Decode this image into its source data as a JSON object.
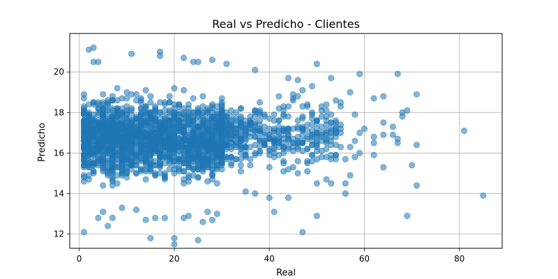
{
  "chart_data": {
    "type": "scatter",
    "title": "Real vs Predicho - Clientes",
    "xlabel": "Real",
    "ylabel": "Predicho",
    "xlim": [
      -2,
      89
    ],
    "ylim": [
      11.3,
      21.9
    ],
    "xticks": [
      0,
      20,
      40,
      60,
      80
    ],
    "yticks": [
      12,
      14,
      16,
      18,
      20
    ],
    "grid": true,
    "marker_color": "#1f77b4",
    "marker_alpha": 0.55,
    "dense_cloud": {
      "x_range": [
        1,
        30
      ],
      "y_range": [
        13.2,
        19.6
      ],
      "count": 1800
    },
    "sparse_cloud": {
      "x_range": [
        30,
        55
      ],
      "y_range": [
        14.2,
        19.0
      ],
      "count": 420
    },
    "points": [
      {
        "x": 3,
        "y": 21.2
      },
      {
        "x": 2,
        "y": 21.1
      },
      {
        "x": 17,
        "y": 21.0
      },
      {
        "x": 17,
        "y": 20.8
      },
      {
        "x": 11,
        "y": 20.9
      },
      {
        "x": 3,
        "y": 20.5
      },
      {
        "x": 4,
        "y": 20.5
      },
      {
        "x": 22,
        "y": 20.7
      },
      {
        "x": 24,
        "y": 20.5
      },
      {
        "x": 25,
        "y": 20.5
      },
      {
        "x": 28,
        "y": 20.6
      },
      {
        "x": 31,
        "y": 20.4
      },
      {
        "x": 37,
        "y": 20.1
      },
      {
        "x": 50,
        "y": 20.4
      },
      {
        "x": 59,
        "y": 19.9
      },
      {
        "x": 67,
        "y": 19.9
      },
      {
        "x": 44,
        "y": 19.7
      },
      {
        "x": 46,
        "y": 19.6
      },
      {
        "x": 53,
        "y": 19.7
      },
      {
        "x": 49,
        "y": 19.3
      },
      {
        "x": 57,
        "y": 19.0
      },
      {
        "x": 47,
        "y": 19.1
      },
      {
        "x": 71,
        "y": 18.9
      },
      {
        "x": 64,
        "y": 18.8
      },
      {
        "x": 62,
        "y": 18.7
      },
      {
        "x": 54,
        "y": 18.6
      },
      {
        "x": 52,
        "y": 18.4
      },
      {
        "x": 55,
        "y": 18.3
      },
      {
        "x": 69,
        "y": 18.1
      },
      {
        "x": 68,
        "y": 18.0
      },
      {
        "x": 68,
        "y": 17.8
      },
      {
        "x": 58,
        "y": 17.9
      },
      {
        "x": 64,
        "y": 17.5
      },
      {
        "x": 66,
        "y": 17.3
      },
      {
        "x": 60,
        "y": 17.2
      },
      {
        "x": 59,
        "y": 17.0
      },
      {
        "x": 64,
        "y": 16.9
      },
      {
        "x": 66,
        "y": 16.9
      },
      {
        "x": 67,
        "y": 16.7
      },
      {
        "x": 62,
        "y": 16.8
      },
      {
        "x": 62,
        "y": 16.5
      },
      {
        "x": 67,
        "y": 16.5
      },
      {
        "x": 71,
        "y": 16.4
      },
      {
        "x": 58,
        "y": 16.6
      },
      {
        "x": 57,
        "y": 16.3
      },
      {
        "x": 59,
        "y": 16.0
      },
      {
        "x": 62,
        "y": 15.9
      },
      {
        "x": 58,
        "y": 15.8
      },
      {
        "x": 56,
        "y": 15.7
      },
      {
        "x": 64,
        "y": 15.3
      },
      {
        "x": 70,
        "y": 15.4
      },
      {
        "x": 57,
        "y": 14.9
      },
      {
        "x": 56,
        "y": 14.5
      },
      {
        "x": 53,
        "y": 14.5
      },
      {
        "x": 50,
        "y": 14.5
      },
      {
        "x": 52,
        "y": 14.7
      },
      {
        "x": 56,
        "y": 14.0
      },
      {
        "x": 71,
        "y": 14.4
      },
      {
        "x": 81,
        "y": 17.1
      },
      {
        "x": 85,
        "y": 13.9
      },
      {
        "x": 69,
        "y": 12.9
      },
      {
        "x": 50,
        "y": 12.9
      },
      {
        "x": 47,
        "y": 12.1
      },
      {
        "x": 41,
        "y": 13.1
      },
      {
        "x": 40,
        "y": 13.8
      },
      {
        "x": 44,
        "y": 13.8
      },
      {
        "x": 37,
        "y": 14.0
      },
      {
        "x": 35,
        "y": 14.1
      },
      {
        "x": 1,
        "y": 12.1
      },
      {
        "x": 15,
        "y": 11.8
      },
      {
        "x": 20,
        "y": 11.8
      },
      {
        "x": 20,
        "y": 11.5
      },
      {
        "x": 25,
        "y": 11.7
      },
      {
        "x": 6,
        "y": 12.4
      },
      {
        "x": 4,
        "y": 12.8
      },
      {
        "x": 7,
        "y": 12.8
      },
      {
        "x": 14,
        "y": 12.7
      },
      {
        "x": 16,
        "y": 12.8
      },
      {
        "x": 18,
        "y": 12.8
      },
      {
        "x": 22,
        "y": 12.8
      },
      {
        "x": 23,
        "y": 12.9
      },
      {
        "x": 26,
        "y": 12.6
      },
      {
        "x": 28,
        "y": 12.7
      },
      {
        "x": 29,
        "y": 13.0
      },
      {
        "x": 27,
        "y": 13.1
      },
      {
        "x": 9,
        "y": 13.3
      },
      {
        "x": 5,
        "y": 13.1
      },
      {
        "x": 12,
        "y": 13.2
      },
      {
        "x": 43,
        "y": 18.1
      },
      {
        "x": 46,
        "y": 18.8
      },
      {
        "x": 45,
        "y": 18.6
      },
      {
        "x": 48,
        "y": 18.4
      },
      {
        "x": 51,
        "y": 18.3
      },
      {
        "x": 53,
        "y": 17.9
      },
      {
        "x": 52,
        "y": 17.6
      },
      {
        "x": 54,
        "y": 17.2
      },
      {
        "x": 50,
        "y": 16.9
      },
      {
        "x": 51,
        "y": 16.6
      },
      {
        "x": 52,
        "y": 16.2
      },
      {
        "x": 53,
        "y": 15.9
      },
      {
        "x": 49,
        "y": 15.6
      },
      {
        "x": 48,
        "y": 15.1
      },
      {
        "x": 46,
        "y": 15.0
      },
      {
        "x": 44,
        "y": 15.2
      }
    ]
  }
}
